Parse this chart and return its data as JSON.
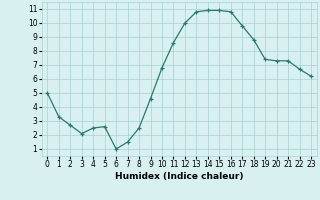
{
  "x": [
    0,
    1,
    2,
    3,
    4,
    5,
    6,
    7,
    8,
    9,
    10,
    11,
    12,
    13,
    14,
    15,
    16,
    17,
    18,
    19,
    20,
    21,
    22,
    23
  ],
  "y": [
    5.0,
    3.3,
    2.7,
    2.1,
    2.5,
    2.6,
    1.0,
    1.5,
    2.5,
    4.6,
    6.8,
    8.6,
    10.0,
    10.8,
    10.9,
    10.9,
    10.8,
    9.8,
    8.8,
    7.4,
    7.3,
    7.3,
    6.7,
    6.2
  ],
  "line_color": "#2a7a6a",
  "marker": "+",
  "bg_color": "#d8f0f0",
  "grid_color": "#a8d0d0",
  "xlabel": "Humidex (Indice chaleur)",
  "ylim": [
    0.5,
    11.5
  ],
  "xlim": [
    -0.5,
    23.5
  ],
  "yticks": [
    1,
    2,
    3,
    4,
    5,
    6,
    7,
    8,
    9,
    10,
    11
  ],
  "xtick_labels": [
    "0",
    "1",
    "2",
    "3",
    "4",
    "5",
    "6",
    "7",
    "8",
    "9",
    "10",
    "11",
    "12",
    "13",
    "14",
    "15",
    "16",
    "17",
    "18",
    "19",
    "20",
    "21",
    "22",
    "23"
  ],
  "label_fontsize": 6.5,
  "tick_fontsize": 5.5
}
